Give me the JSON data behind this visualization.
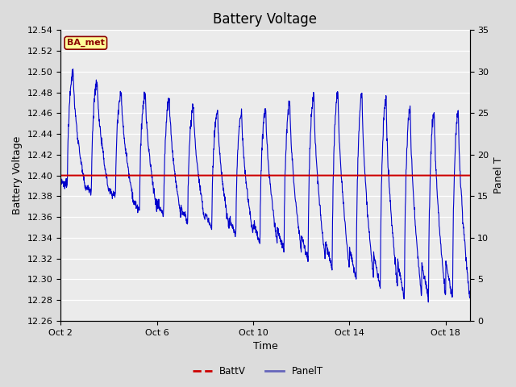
{
  "title": "Battery Voltage",
  "xlabel": "Time",
  "ylabel_left": "Battery Voltage",
  "ylabel_right": "Panel T",
  "ylim_left": [
    12.26,
    12.54
  ],
  "ylim_right": [
    0,
    35
  ],
  "yticks_left": [
    12.26,
    12.28,
    12.3,
    12.32,
    12.34,
    12.36,
    12.38,
    12.4,
    12.42,
    12.44,
    12.46,
    12.48,
    12.5,
    12.52,
    12.54
  ],
  "yticks_right": [
    0,
    5,
    10,
    15,
    20,
    25,
    30,
    35
  ],
  "xtick_labels": [
    "Oct 2",
    "Oct 6",
    "Oct 10",
    "Oct 14",
    "Oct 18"
  ],
  "xtick_days": [
    0,
    4,
    8,
    12,
    16
  ],
  "batt_v": 12.4,
  "bg_color": "#dcdcdc",
  "plot_bg_color": "#ebebeb",
  "batt_line_color": "#cc0000",
  "panel_line_color": "#0000cc",
  "legend_batt_color": "#cc0000",
  "legend_panel_color": "#6666bb",
  "watermark_text": "BA_met",
  "watermark_fg": "#8b0000",
  "watermark_bg": "#ffff99",
  "title_fontsize": 12,
  "axis_label_fontsize": 9,
  "tick_fontsize": 8,
  "n_days": 17,
  "n_per_day": 96
}
